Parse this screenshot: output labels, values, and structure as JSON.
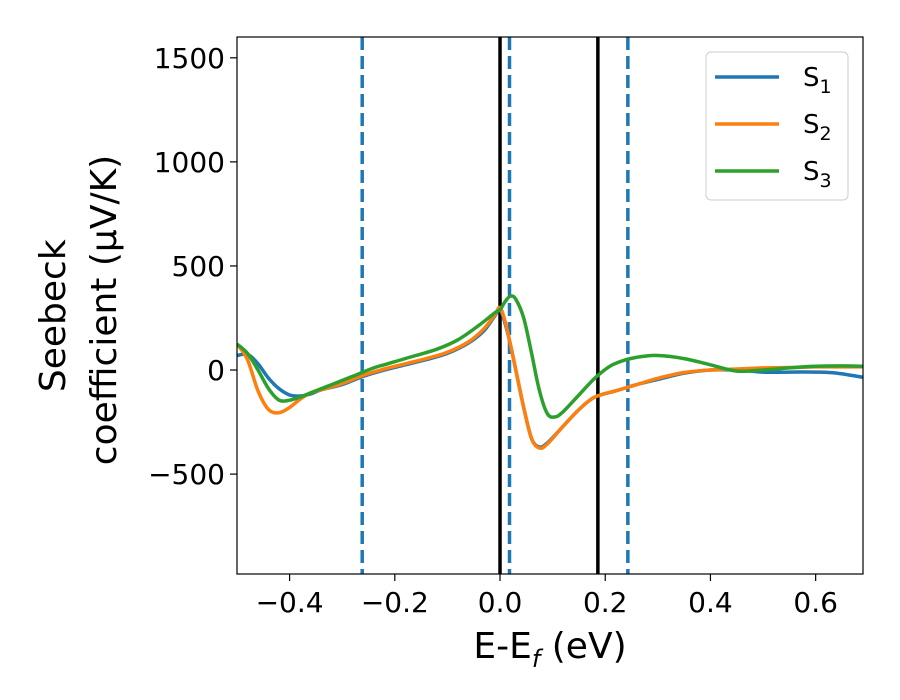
{
  "chart_data": {
    "type": "line",
    "title": "",
    "xlabel": {
      "main": "E-E",
      "sub": "f",
      "unit": " (eV)"
    },
    "ylabel": {
      "line1": "Seebeck",
      "line2": "coefficient  (μV/K)"
    },
    "xlim": [
      -0.5,
      0.69
    ],
    "ylim": [
      -980,
      1600
    ],
    "xticks": [
      {
        "value": -0.4,
        "label": "−0.4"
      },
      {
        "value": -0.2,
        "label": "−0.2"
      },
      {
        "value": 0.0,
        "label": "0.0"
      },
      {
        "value": 0.2,
        "label": "0.2"
      },
      {
        "value": 0.4,
        "label": "0.4"
      },
      {
        "value": 0.6,
        "label": "0.6"
      }
    ],
    "yticks": [
      {
        "value": -500,
        "label": "−500"
      },
      {
        "value": 0,
        "label": "0"
      },
      {
        "value": 500,
        "label": "500"
      },
      {
        "value": 1000,
        "label": "1000"
      },
      {
        "value": 1500,
        "label": "1500"
      }
    ],
    "grid": false,
    "legend_position": "top-right",
    "series": [
      {
        "name": "S",
        "subscript": "1",
        "color": "#1f77b4",
        "points": [
          [
            -0.5,
            70
          ],
          [
            -0.48,
            75
          ],
          [
            -0.46,
            30
          ],
          [
            -0.44,
            -40
          ],
          [
            -0.42,
            -90
          ],
          [
            -0.4,
            -120
          ],
          [
            -0.38,
            -125
          ],
          [
            -0.36,
            -115
          ],
          [
            -0.34,
            -95
          ],
          [
            -0.3,
            -70
          ],
          [
            -0.26,
            -30
          ],
          [
            -0.22,
            0
          ],
          [
            -0.18,
            25
          ],
          [
            -0.14,
            50
          ],
          [
            -0.1,
            80
          ],
          [
            -0.06,
            130
          ],
          [
            -0.03,
            190
          ],
          [
            -0.01,
            260
          ],
          [
            0.0,
            290
          ],
          [
            0.01,
            220
          ],
          [
            0.02,
            120
          ],
          [
            0.03,
            0
          ],
          [
            0.045,
            -180
          ],
          [
            0.06,
            -330
          ],
          [
            0.075,
            -370
          ],
          [
            0.09,
            -350
          ],
          [
            0.12,
            -270
          ],
          [
            0.15,
            -190
          ],
          [
            0.18,
            -130
          ],
          [
            0.22,
            -100
          ],
          [
            0.26,
            -70
          ],
          [
            0.3,
            -45
          ],
          [
            0.35,
            -15
          ],
          [
            0.4,
            0
          ],
          [
            0.45,
            0
          ],
          [
            0.5,
            -10
          ],
          [
            0.55,
            -10
          ],
          [
            0.6,
            -10
          ],
          [
            0.64,
            -15
          ],
          [
            0.69,
            -35
          ]
        ]
      },
      {
        "name": "S",
        "subscript": "2",
        "color": "#ff7f0e",
        "points": [
          [
            -0.5,
            125
          ],
          [
            -0.48,
            50
          ],
          [
            -0.46,
            -100
          ],
          [
            -0.44,
            -190
          ],
          [
            -0.42,
            -205
          ],
          [
            -0.4,
            -180
          ],
          [
            -0.38,
            -140
          ],
          [
            -0.36,
            -110
          ],
          [
            -0.34,
            -95
          ],
          [
            -0.3,
            -65
          ],
          [
            -0.26,
            -25
          ],
          [
            -0.22,
            5
          ],
          [
            -0.18,
            30
          ],
          [
            -0.14,
            55
          ],
          [
            -0.1,
            85
          ],
          [
            -0.06,
            135
          ],
          [
            -0.03,
            200
          ],
          [
            -0.01,
            265
          ],
          [
            0.0,
            300
          ],
          [
            0.01,
            230
          ],
          [
            0.02,
            120
          ],
          [
            0.03,
            0
          ],
          [
            0.045,
            -180
          ],
          [
            0.06,
            -330
          ],
          [
            0.075,
            -375
          ],
          [
            0.09,
            -355
          ],
          [
            0.12,
            -270
          ],
          [
            0.15,
            -190
          ],
          [
            0.18,
            -130
          ],
          [
            0.22,
            -100
          ],
          [
            0.26,
            -70
          ],
          [
            0.3,
            -40
          ],
          [
            0.35,
            -12
          ],
          [
            0.4,
            0
          ],
          [
            0.45,
            5
          ],
          [
            0.5,
            10
          ],
          [
            0.55,
            12
          ],
          [
            0.6,
            15
          ],
          [
            0.65,
            15
          ],
          [
            0.69,
            15
          ]
        ]
      },
      {
        "name": "S",
        "subscript": "3",
        "color": "#2ca02c",
        "points": [
          [
            -0.5,
            125
          ],
          [
            -0.48,
            80
          ],
          [
            -0.46,
            0
          ],
          [
            -0.44,
            -90
          ],
          [
            -0.42,
            -145
          ],
          [
            -0.4,
            -145
          ],
          [
            -0.38,
            -130
          ],
          [
            -0.36,
            -110
          ],
          [
            -0.32,
            -70
          ],
          [
            -0.28,
            -30
          ],
          [
            -0.24,
            10
          ],
          [
            -0.2,
            40
          ],
          [
            -0.16,
            70
          ],
          [
            -0.12,
            100
          ],
          [
            -0.08,
            145
          ],
          [
            -0.04,
            215
          ],
          [
            -0.01,
            275
          ],
          [
            0.0,
            290
          ],
          [
            0.01,
            330
          ],
          [
            0.02,
            355
          ],
          [
            0.03,
            340
          ],
          [
            0.045,
            250
          ],
          [
            0.06,
            80
          ],
          [
            0.075,
            -100
          ],
          [
            0.09,
            -210
          ],
          [
            0.105,
            -225
          ],
          [
            0.12,
            -200
          ],
          [
            0.15,
            -120
          ],
          [
            0.18,
            -40
          ],
          [
            0.21,
            20
          ],
          [
            0.24,
            50
          ],
          [
            0.27,
            65
          ],
          [
            0.3,
            70
          ],
          [
            0.35,
            55
          ],
          [
            0.4,
            25
          ],
          [
            0.45,
            -5
          ],
          [
            0.5,
            0
          ],
          [
            0.55,
            10
          ],
          [
            0.6,
            18
          ],
          [
            0.65,
            20
          ],
          [
            0.69,
            18
          ]
        ]
      }
    ],
    "vlines": [
      {
        "x": -0.262,
        "style": "dashed",
        "color": "#1f77b4"
      },
      {
        "x": 0.018,
        "style": "dashed",
        "color": "#1f77b4"
      },
      {
        "x": 0.243,
        "style": "dashed",
        "color": "#1f77b4"
      },
      {
        "x": 0.0,
        "style": "solid",
        "color": "#000000"
      },
      {
        "x": 0.186,
        "style": "solid",
        "color": "#000000"
      }
    ]
  }
}
